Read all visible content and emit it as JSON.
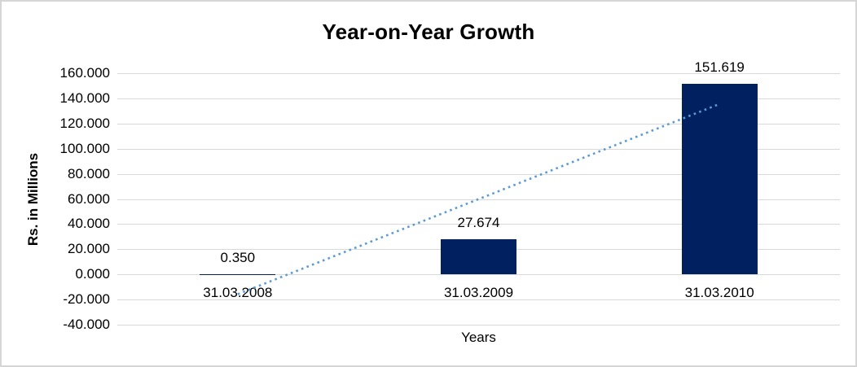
{
  "chart_data": {
    "type": "bar",
    "title": "Year-on-Year Growth",
    "xlabel": "Years",
    "ylabel": "Rs. in Millions",
    "categories": [
      "31.03.2008",
      "31.03.2009",
      "31.03.2010"
    ],
    "values": [
      0.35,
      27.674,
      151.619
    ],
    "data_labels": [
      "0.350",
      "27.674",
      "151.619"
    ],
    "ylim": [
      -40,
      160
    ],
    "ytick_step": 20,
    "ytick_labels": [
      "160.000",
      "140.000",
      "120.000",
      "100.000",
      "80.000",
      "60.000",
      "40.000",
      "20.000",
      "0.000",
      "-20.000",
      "-40.000"
    ],
    "grid": true,
    "legend_position": "none",
    "bar_color": "#002060",
    "gridline_color": "#d9d9d9",
    "trendline": {
      "type": "linear",
      "style": "dotted",
      "color": "#5B9BD5"
    }
  }
}
